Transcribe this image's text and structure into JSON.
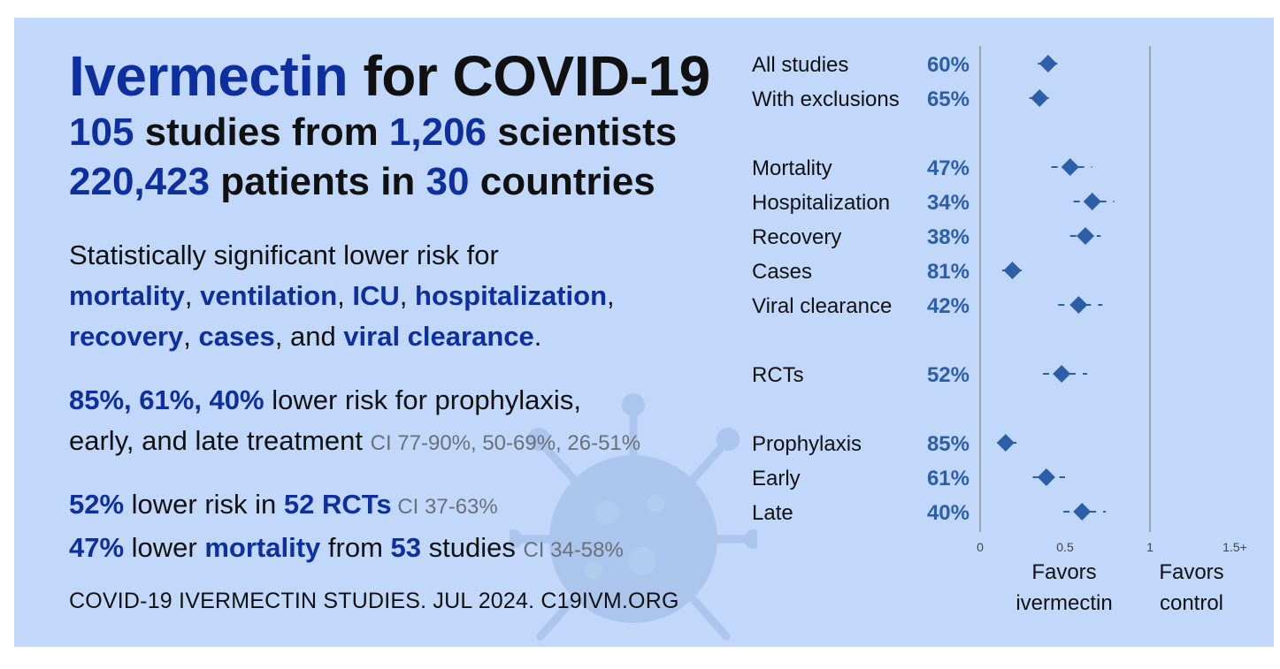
{
  "headline": {
    "title_blue": "Ivermectin",
    "title_black": " for COVID-19",
    "studies_num": "105",
    "studies_text1": " studies from ",
    "scientists_num": "1,206",
    "scientists_text": " scientists",
    "patients_num": "220,423",
    "patients_text": " patients in ",
    "countries_num": "30",
    "countries_text": " countries"
  },
  "significance": {
    "intro": "Statistically significant lower risk for",
    "outcomes": [
      "mortality",
      "ventilation",
      "ICU",
      "hospitalization",
      "recovery",
      "cases",
      "viral clearance"
    ],
    "sep": ", ",
    "and": ", and ",
    "end": "."
  },
  "treatment": {
    "pcts": "85%, 61%, 40%",
    "line1_text": " lower risk for prophylaxis,",
    "line2_text": "early, and late treatment ",
    "ci": "CI 77-90%, 50-69%, 26-51%"
  },
  "rct_summary": {
    "rct_pct": "52%",
    "rct_text": " lower risk in ",
    "rct_count": "52 RCTs",
    "rct_ci": " CI 37-63%",
    "mort_pct": "47%",
    "mort_text1": " lower ",
    "mort_word": "mortality",
    "mort_text2": " from ",
    "mort_count": "53",
    "mort_text3": " studies ",
    "mort_ci": "CI 34-58%"
  },
  "footer": "COVID-19 IVERMECTIN STUDIES. JUL 2024. C19IVM.ORG",
  "colors": {
    "background": "#c2d8fb",
    "accent_blue": "#0d2fa0",
    "marker": "#2c5fa8",
    "ci_grey": "#6a7078"
  },
  "chart_data": {
    "type": "scatter",
    "title": "",
    "xlabel": "",
    "ylabel": "",
    "xlim": [
      0,
      1.5
    ],
    "x_ticks": [
      "0",
      "0.5",
      "1",
      "1.5+"
    ],
    "favors_left": "Favors ivermectin",
    "favors_right": "Favors control",
    "rows": [
      {
        "label": "All studies",
        "pct": "60%",
        "est": 0.4,
        "lo": 0.34,
        "hi": 0.46
      },
      {
        "label": "With exclusions",
        "pct": "65%",
        "est": 0.35,
        "lo": 0.29,
        "hi": 0.42
      },
      {
        "label": "Mortality",
        "pct": "47%",
        "est": 0.53,
        "lo": 0.42,
        "hi": 0.66
      },
      {
        "label": "Hospitalization",
        "pct": "34%",
        "est": 0.66,
        "lo": 0.55,
        "hi": 0.79
      },
      {
        "label": "Recovery",
        "pct": "38%",
        "est": 0.62,
        "lo": 0.53,
        "hi": 0.71
      },
      {
        "label": "Cases",
        "pct": "81%",
        "est": 0.19,
        "lo": 0.13,
        "hi": 0.28
      },
      {
        "label": "Viral clearance",
        "pct": "42%",
        "est": 0.58,
        "lo": 0.46,
        "hi": 0.72
      },
      {
        "label": "RCTs",
        "pct": "52%",
        "est": 0.48,
        "lo": 0.37,
        "hi": 0.63
      },
      {
        "label": "Prophylaxis",
        "pct": "85%",
        "est": 0.15,
        "lo": 0.1,
        "hi": 0.23
      },
      {
        "label": "Early",
        "pct": "61%",
        "est": 0.39,
        "lo": 0.31,
        "hi": 0.5
      },
      {
        "label": "Late",
        "pct": "40%",
        "est": 0.6,
        "lo": 0.49,
        "hi": 0.74
      }
    ]
  }
}
